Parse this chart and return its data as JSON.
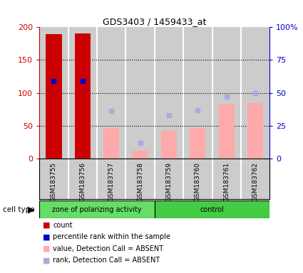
{
  "title": "GDS3403 / 1459433_at",
  "samples": [
    "GSM183755",
    "GSM183756",
    "GSM183757",
    "GSM183758",
    "GSM183759",
    "GSM183760",
    "GSM183761",
    "GSM183762"
  ],
  "count_values": [
    190,
    191,
    null,
    null,
    null,
    null,
    null,
    null
  ],
  "rank_values_pct": [
    59,
    59,
    null,
    null,
    null,
    null,
    null,
    null
  ],
  "absent_value_bars": [
    null,
    null,
    46,
    12,
    42,
    46,
    83,
    84
  ],
  "absent_rank_pct": [
    null,
    null,
    36,
    12,
    33,
    37,
    47,
    50
  ],
  "ylim_left": [
    0,
    200
  ],
  "ylim_right": [
    0,
    100
  ],
  "yticks_left": [
    0,
    50,
    100,
    150,
    200
  ],
  "ytick_labels_left": [
    "0",
    "50",
    "100",
    "150",
    "200"
  ],
  "ytick_labels_right": [
    "0",
    "25",
    "50",
    "75",
    "100%"
  ],
  "left_axis_color": "#cc0000",
  "right_axis_color": "#0000cc",
  "group1_label": "zone of polarizing activity",
  "group2_label": "control",
  "group1_color": "#66DD66",
  "group2_color": "#44CC44",
  "col_bg": "#cccccc",
  "plot_bg": "#ffffff",
  "legend_items": [
    {
      "label": "count",
      "color": "#cc0000"
    },
    {
      "label": "percentile rank within the sample",
      "color": "#0000cc"
    },
    {
      "label": "value, Detection Call = ABSENT",
      "color": "#ffaaaa"
    },
    {
      "label": "rank, Detection Call = ABSENT",
      "color": "#aaaadd"
    }
  ]
}
